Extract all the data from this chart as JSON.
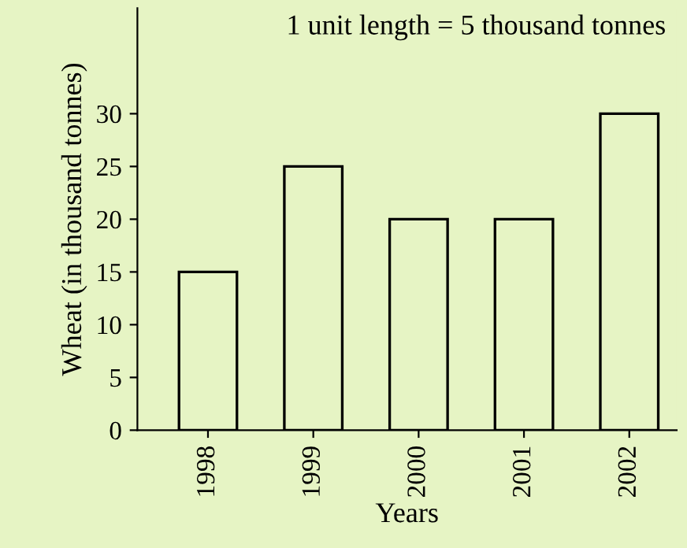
{
  "chart_data": {
    "type": "bar",
    "xlabel": "Years",
    "ylabel": "Wheat (in thousand tonnes)",
    "categories": [
      "1998",
      "1999",
      "2000",
      "2001",
      "2002"
    ],
    "values": [
      15,
      25,
      20,
      20,
      30
    ],
    "color": "#e6f4c4",
    "ylim": [
      0,
      40
    ],
    "yticks": [
      0,
      5,
      10,
      15,
      20,
      25,
      30
    ],
    "grid": false,
    "annotations": [
      "1 unit length = 5 thousand tonnes"
    ]
  }
}
